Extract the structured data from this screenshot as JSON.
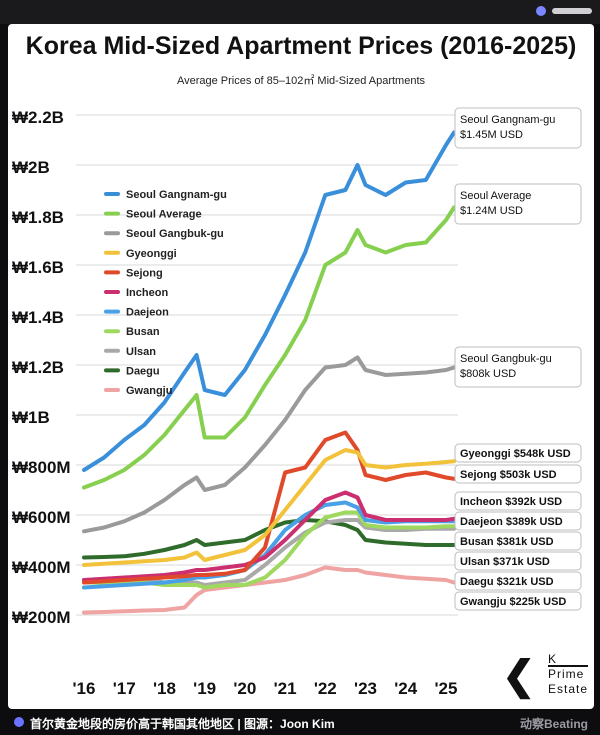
{
  "window": {
    "brand_label": "动察Beating",
    "footer_text": "首尔黄金地段的房价高于韩国其他地区 | 图源：Joon Kim"
  },
  "logo": {
    "line1": "K",
    "line2": "Prime",
    "line3": "Estate"
  },
  "chart_data": {
    "type": "line",
    "title": "Korea Mid-Sized Apartment Prices (2016-2025)",
    "subtitle": "Average Prices of 85–102㎡ Mid-Sized Apartments",
    "xlabel": "",
    "ylabel": "",
    "grid": true,
    "legend_position": "left",
    "x": [
      2016.0,
      2016.5,
      2017.0,
      2017.5,
      2018.0,
      2018.5,
      2018.8,
      2019.0,
      2019.5,
      2020.0,
      2020.5,
      2021.0,
      2021.5,
      2022.0,
      2022.5,
      2022.8,
      2023.0,
      2023.5,
      2024.0,
      2024.5,
      2025.0,
      2025.2
    ],
    "x_ticks": [
      "'16",
      "'17",
      "'18",
      "'19",
      "'20",
      "'21",
      "'22",
      "'23",
      "'24",
      "'25"
    ],
    "x_tick_values": [
      2016,
      2017,
      2018,
      2019,
      2020,
      2021,
      2022,
      2023,
      2024,
      2025
    ],
    "ylim": [
      200,
      2200
    ],
    "y_ticks": [
      "₩200M",
      "₩400M",
      "₩600M",
      "₩800M",
      "₩1B",
      "₩1.2B",
      "₩1.4B",
      "₩1.6B",
      "₩1.8B",
      "₩2B",
      "₩2.2B"
    ],
    "y_tick_values": [
      200,
      400,
      600,
      800,
      1000,
      1200,
      1400,
      1600,
      1800,
      2000,
      2200
    ],
    "series": [
      {
        "name": "Seoul Gangnam-gu",
        "color": "#3a8fdb",
        "label_line1": "Seoul Gangnam-gu",
        "label_line2": "$1.45M USD",
        "values": [
          780,
          830,
          900,
          960,
          1050,
          1170,
          1240,
          1100,
          1080,
          1180,
          1320,
          1480,
          1650,
          1880,
          1900,
          2000,
          1920,
          1880,
          1930,
          1940,
          2080,
          2130
        ]
      },
      {
        "name": "Seoul Average",
        "color": "#86cf4f",
        "label_line1": "Seoul Average",
        "label_line2": "$1.24M USD",
        "values": [
          710,
          740,
          780,
          840,
          920,
          1020,
          1080,
          910,
          910,
          990,
          1120,
          1240,
          1380,
          1600,
          1650,
          1740,
          1680,
          1650,
          1680,
          1690,
          1780,
          1830
        ]
      },
      {
        "name": "Seoul Gangbuk-gu",
        "color": "#9a9a9a",
        "label_line1": "Seoul Gangbuk-gu",
        "label_line2": "$808k USD",
        "values": [
          535,
          550,
          575,
          610,
          660,
          720,
          750,
          700,
          720,
          790,
          880,
          980,
          1100,
          1190,
          1200,
          1230,
          1180,
          1160,
          1165,
          1170,
          1180,
          1190
        ]
      },
      {
        "name": "Gyeonggi",
        "color": "#f2c23b",
        "label_line1": "Gyeonggi",
        "label_line2": "$548k USD",
        "values": [
          400,
          405,
          410,
          415,
          420,
          430,
          450,
          420,
          440,
          460,
          520,
          620,
          720,
          820,
          860,
          850,
          800,
          790,
          800,
          805,
          812,
          815
        ]
      },
      {
        "name": "Sejong",
        "color": "#e04a2a",
        "label_line1": "Sejong",
        "label_line2": "$503k USD",
        "values": [
          330,
          335,
          340,
          345,
          350,
          355,
          360,
          360,
          365,
          380,
          470,
          770,
          790,
          900,
          930,
          860,
          760,
          740,
          760,
          770,
          750,
          745
        ]
      },
      {
        "name": "Incheon",
        "color": "#cc2f6f",
        "label_line1": "Incheon",
        "label_line2": "$392k USD",
        "values": [
          340,
          345,
          350,
          355,
          360,
          370,
          380,
          380,
          390,
          400,
          430,
          500,
          580,
          660,
          690,
          670,
          600,
          580,
          580,
          580,
          580,
          585
        ]
      },
      {
        "name": "Daejeon",
        "color": "#4aa0e6",
        "label_line1": "Daejeon",
        "label_line2": "$389k USD",
        "values": [
          310,
          315,
          320,
          325,
          330,
          340,
          350,
          350,
          360,
          380,
          440,
          540,
          600,
          640,
          650,
          630,
          580,
          570,
          575,
          575,
          575,
          575
        ]
      },
      {
        "name": "Busan",
        "color": "#9fd85f",
        "label_line1": "Busan",
        "label_line2": "$381k USD",
        "values": [
          330,
          330,
          330,
          330,
          320,
          320,
          320,
          310,
          320,
          320,
          350,
          420,
          520,
          590,
          610,
          610,
          560,
          550,
          550,
          550,
          555,
          555
        ]
      },
      {
        "name": "Ulsan",
        "color": "#a9a9a9",
        "label_line1": "Ulsan",
        "label_line2": "$371k USD",
        "values": [
          340,
          340,
          345,
          345,
          330,
          330,
          330,
          320,
          330,
          340,
          400,
          470,
          530,
          570,
          580,
          580,
          550,
          540,
          540,
          545,
          545,
          545
        ]
      },
      {
        "name": "Daegu",
        "color": "#2f6b2a",
        "label_line1": "Daegu",
        "label_line2": "$321k USD",
        "values": [
          430,
          432,
          435,
          445,
          460,
          480,
          500,
          480,
          490,
          500,
          540,
          570,
          580,
          575,
          560,
          540,
          500,
          490,
          485,
          480,
          480,
          480
        ]
      },
      {
        "name": "Gwangju",
        "color": "#f0a3a3",
        "label_line1": "Gwangju",
        "label_line2": "$225k USD",
        "values": [
          210,
          212,
          215,
          218,
          220,
          230,
          280,
          300,
          310,
          320,
          330,
          340,
          360,
          390,
          380,
          380,
          370,
          360,
          350,
          345,
          340,
          330
        ]
      }
    ]
  }
}
